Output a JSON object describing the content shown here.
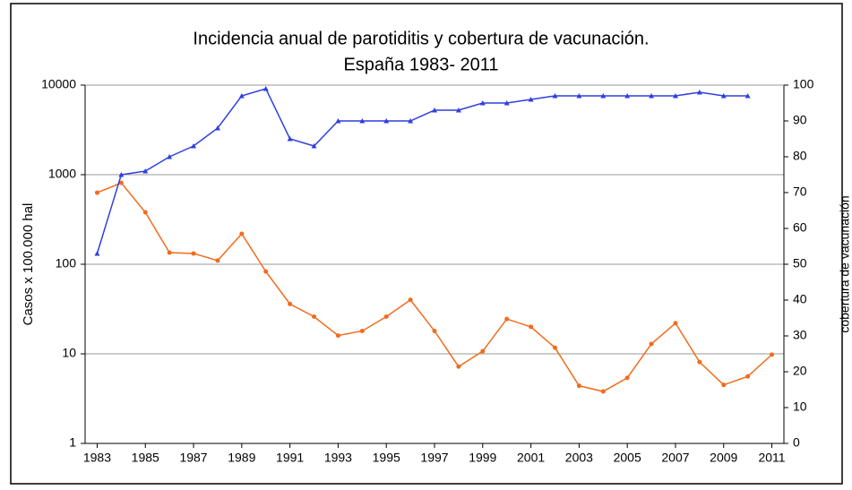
{
  "chart_data": {
    "type": "line",
    "title": "Incidencia anual de parotiditis y cobertura de vacunación.",
    "subtitle": "España 1983- 2011",
    "y_label": "Casos x 100.000 hal",
    "y2_label": "cobertura de vacunación",
    "x": [
      1983,
      1984,
      1985,
      1986,
      1987,
      1988,
      1989,
      1990,
      1991,
      1992,
      1993,
      1994,
      1995,
      1996,
      1997,
      1998,
      1999,
      2000,
      2001,
      2002,
      2003,
      2004,
      2005,
      2006,
      2007,
      2008,
      2009,
      2010,
      2011
    ],
    "xlim": [
      1982.5,
      2011.5
    ],
    "xticks": [
      1983,
      1985,
      1987,
      1989,
      1991,
      1993,
      1995,
      1997,
      1999,
      2001,
      2003,
      2005,
      2007,
      2009,
      2011
    ],
    "ylim": [
      1,
      10000
    ],
    "yticks": [
      1,
      10,
      100,
      1000,
      10000
    ],
    "log_y": true,
    "grid": true,
    "y2lim": [
      0,
      100
    ],
    "y2ticks": [
      0,
      10,
      20,
      30,
      40,
      50,
      60,
      70,
      80,
      90,
      100
    ],
    "series": [
      {
        "name": "Incidencia",
        "color": "#f26b1d",
        "marker": "circle",
        "values": [
          630,
          810,
          380,
          135,
          132,
          110,
          219,
          83,
          36,
          26,
          16,
          18,
          26,
          40,
          18,
          7.2,
          10.7,
          24.5,
          20,
          11.7,
          4.4,
          3.8,
          5.4,
          12.9,
          22,
          8.1,
          4.5,
          5.6,
          9.8
        ]
      },
      {
        "name": "Cobertura",
        "color": "#2f3fe0",
        "marker": "triangle",
        "axis": "y2",
        "values": [
          53,
          75,
          76,
          80,
          83,
          88,
          97,
          99,
          85,
          83,
          90,
          90,
          90,
          90,
          93,
          93,
          95,
          95,
          96,
          97,
          97,
          97,
          97,
          97,
          97,
          98,
          97,
          97,
          null
        ]
      }
    ]
  }
}
